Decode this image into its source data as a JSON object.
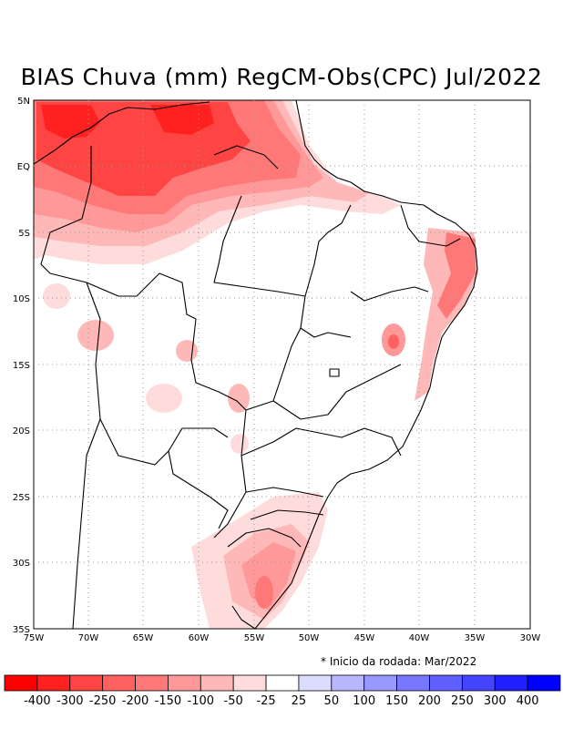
{
  "title": "BIAS Chuva (mm) RegCM-Obs(CPC) Jul/2022",
  "lon_labels": [
    "75W",
    "70W",
    "65W",
    "60W",
    "55W",
    "50W",
    "45W",
    "40W",
    "35W",
    "30W"
  ],
  "lat_labels": [
    "5N",
    "EQ",
    "5S",
    "10S",
    "15S",
    "20S",
    "25S",
    "30S",
    "35S"
  ],
  "note": "* Inicio da rodada: Mar/2022",
  "colorbar": {
    "colors": [
      "#ff0000",
      "#ff2020",
      "#ff4444",
      "#ff6060",
      "#ff7878",
      "#ff9898",
      "#ffb8b8",
      "#ffdcdc",
      "#ffffff",
      "#dcdcff",
      "#b8b8ff",
      "#9898ff",
      "#7878ff",
      "#6060ff",
      "#4444ff",
      "#2020ff",
      "#0000ff"
    ],
    "labels": [
      "-400",
      "-300",
      "-250",
      "-200",
      "-150",
      "-100",
      "-50",
      "-25",
      "25",
      "50",
      "100",
      "150",
      "200",
      "250",
      "300",
      "400"
    ]
  }
}
